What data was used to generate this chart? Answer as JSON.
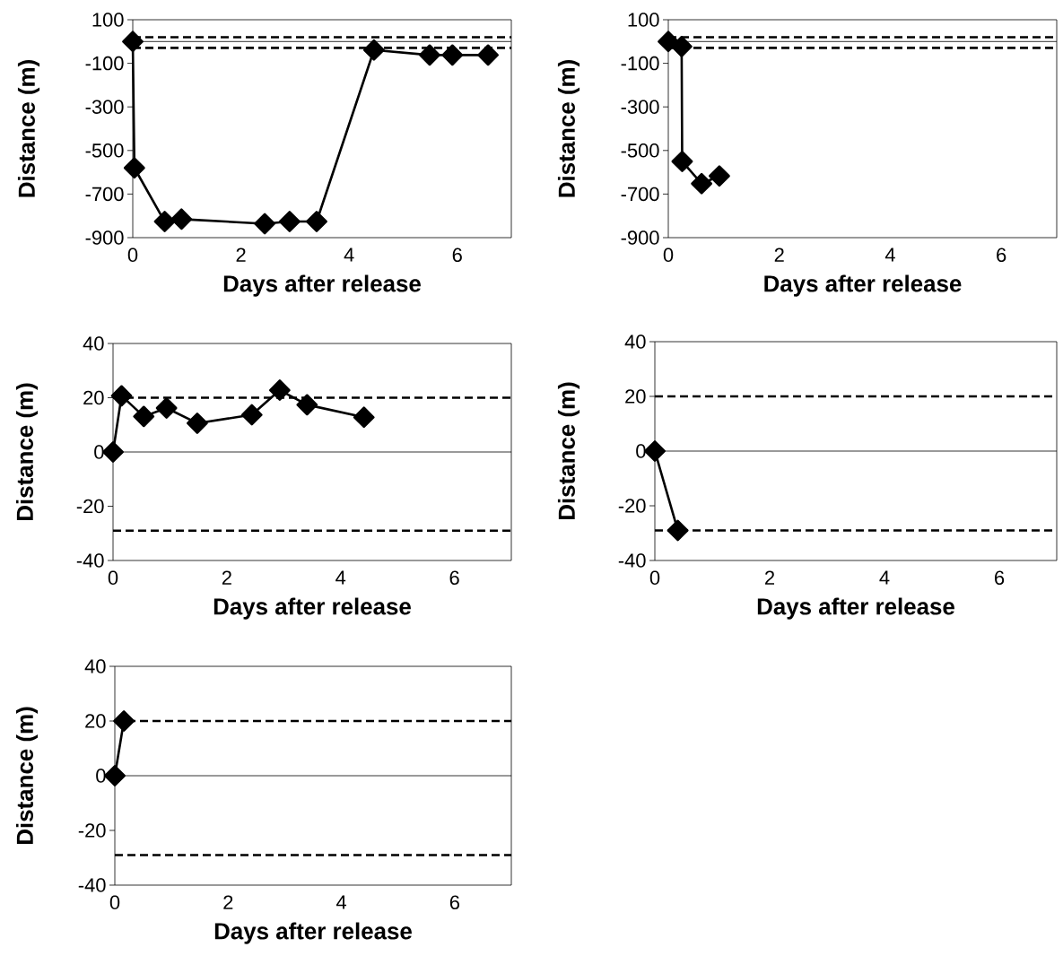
{
  "chart_data": [
    {
      "type": "line",
      "xlabel": "Days after release",
      "ylabel": "Distance (m)",
      "xlim": [
        0,
        7
      ],
      "ylim": [
        -900,
        100
      ],
      "xticks": [
        0,
        2,
        4,
        6
      ],
      "yticks": [
        -900,
        -700,
        -500,
        -300,
        -100,
        100
      ],
      "marker": "diamond",
      "line_style": "solid",
      "color": "#000000",
      "x": [
        0,
        0.03,
        0.59,
        0.9,
        2.44,
        2.9,
        3.4,
        4.46,
        5.49,
        5.91,
        6.57
      ],
      "values": [
        0,
        -580,
        -826,
        -815,
        -836,
        -826,
        -826,
        -39,
        -62,
        -62,
        -62
      ],
      "ref_lines": [
        {
          "axis": "y",
          "value": 20,
          "line_style": "dashed"
        },
        {
          "axis": "y",
          "value": -29,
          "line_style": "dashed"
        }
      ]
    },
    {
      "type": "line",
      "xlabel": "Days after release",
      "ylabel": "Distance (m)",
      "xlim": [
        0,
        7
      ],
      "ylim": [
        -900,
        100
      ],
      "xticks": [
        0,
        2,
        4,
        6
      ],
      "yticks": [
        -900,
        -700,
        -500,
        -300,
        -100,
        100
      ],
      "marker": "diamond",
      "line_style": "solid",
      "color": "#000000",
      "x": [
        0,
        0.24,
        0.25,
        0.6,
        0.92
      ],
      "values": [
        0,
        -23,
        -550,
        -652,
        -617
      ],
      "ref_lines": [
        {
          "axis": "y",
          "value": 20,
          "line_style": "dashed"
        },
        {
          "axis": "y",
          "value": -29,
          "line_style": "dashed"
        }
      ]
    },
    {
      "type": "line",
      "xlabel": "Days after release",
      "ylabel": "Distance (m)",
      "xlim": [
        0,
        7
      ],
      "ylim": [
        -40,
        40
      ],
      "xticks": [
        0,
        2,
        4,
        6
      ],
      "yticks": [
        -40,
        -20,
        0,
        20,
        40
      ],
      "marker": "diamond",
      "line_style": "solid",
      "color": "#000000",
      "x": [
        0,
        0.15,
        0.54,
        0.94,
        1.48,
        2.44,
        2.93,
        3.41,
        4.41
      ],
      "values": [
        0,
        20.7,
        13.1,
        16.2,
        10.6,
        13.7,
        22.8,
        17.4,
        12.8
      ],
      "ref_lines": [
        {
          "axis": "y",
          "value": 20,
          "line_style": "dashed"
        },
        {
          "axis": "y",
          "value": -29,
          "line_style": "dashed"
        }
      ]
    },
    {
      "type": "line",
      "xlabel": "Days after release",
      "ylabel": "Distance (m)",
      "xlim": [
        0,
        7
      ],
      "ylim": [
        -40,
        40
      ],
      "xticks": [
        0,
        2,
        4,
        6
      ],
      "yticks": [
        -40,
        -20,
        0,
        20,
        40
      ],
      "marker": "diamond",
      "line_style": "solid",
      "color": "#000000",
      "x": [
        0,
        0.4
      ],
      "values": [
        0,
        -29
      ],
      "ref_lines": [
        {
          "axis": "y",
          "value": 20,
          "line_style": "dashed"
        },
        {
          "axis": "y",
          "value": -29,
          "line_style": "dashed"
        }
      ]
    },
    {
      "type": "line",
      "xlabel": "Days after release",
      "ylabel": "Distance (m)",
      "xlim": [
        0,
        7
      ],
      "ylim": [
        -40,
        40
      ],
      "xticks": [
        0,
        2,
        4,
        6
      ],
      "yticks": [
        -40,
        -20,
        0,
        20,
        40
      ],
      "marker": "diamond",
      "line_style": "solid",
      "color": "#000000",
      "x": [
        0,
        0.16
      ],
      "values": [
        0,
        20
      ],
      "ref_lines": [
        {
          "axis": "y",
          "value": 20,
          "line_style": "dashed"
        },
        {
          "axis": "y",
          "value": -29,
          "line_style": "dashed"
        }
      ]
    }
  ]
}
